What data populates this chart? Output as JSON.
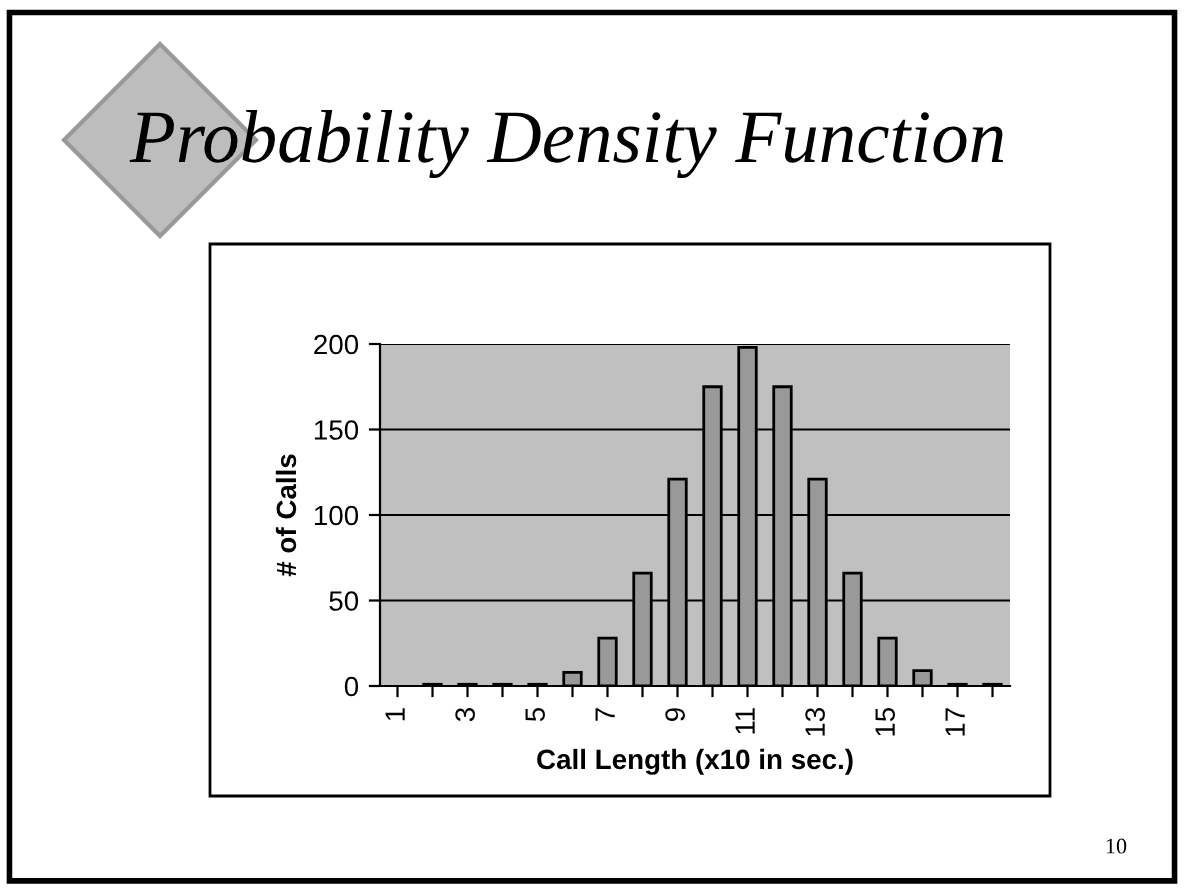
{
  "chart_data": {
    "type": "bar",
    "title": "Probability Density Function",
    "xlabel": "Call Length (x10 in sec.)",
    "ylabel": "# of Calls",
    "categories": [
      "1",
      null,
      "3",
      null,
      "5",
      null,
      "7",
      null,
      "9",
      null,
      "11",
      null,
      "13",
      null,
      "15",
      null,
      "17",
      null
    ],
    "values": [
      0,
      1,
      1,
      1,
      1,
      8,
      28,
      66,
      121,
      175,
      198,
      175,
      121,
      66,
      28,
      9,
      1,
      1
    ],
    "color": "#999999",
    "ylim": [
      0,
      200
    ],
    "yticks": [
      0,
      50,
      100,
      150,
      200
    ],
    "grid": "y",
    "annotations": [
      "10"
    ]
  }
}
